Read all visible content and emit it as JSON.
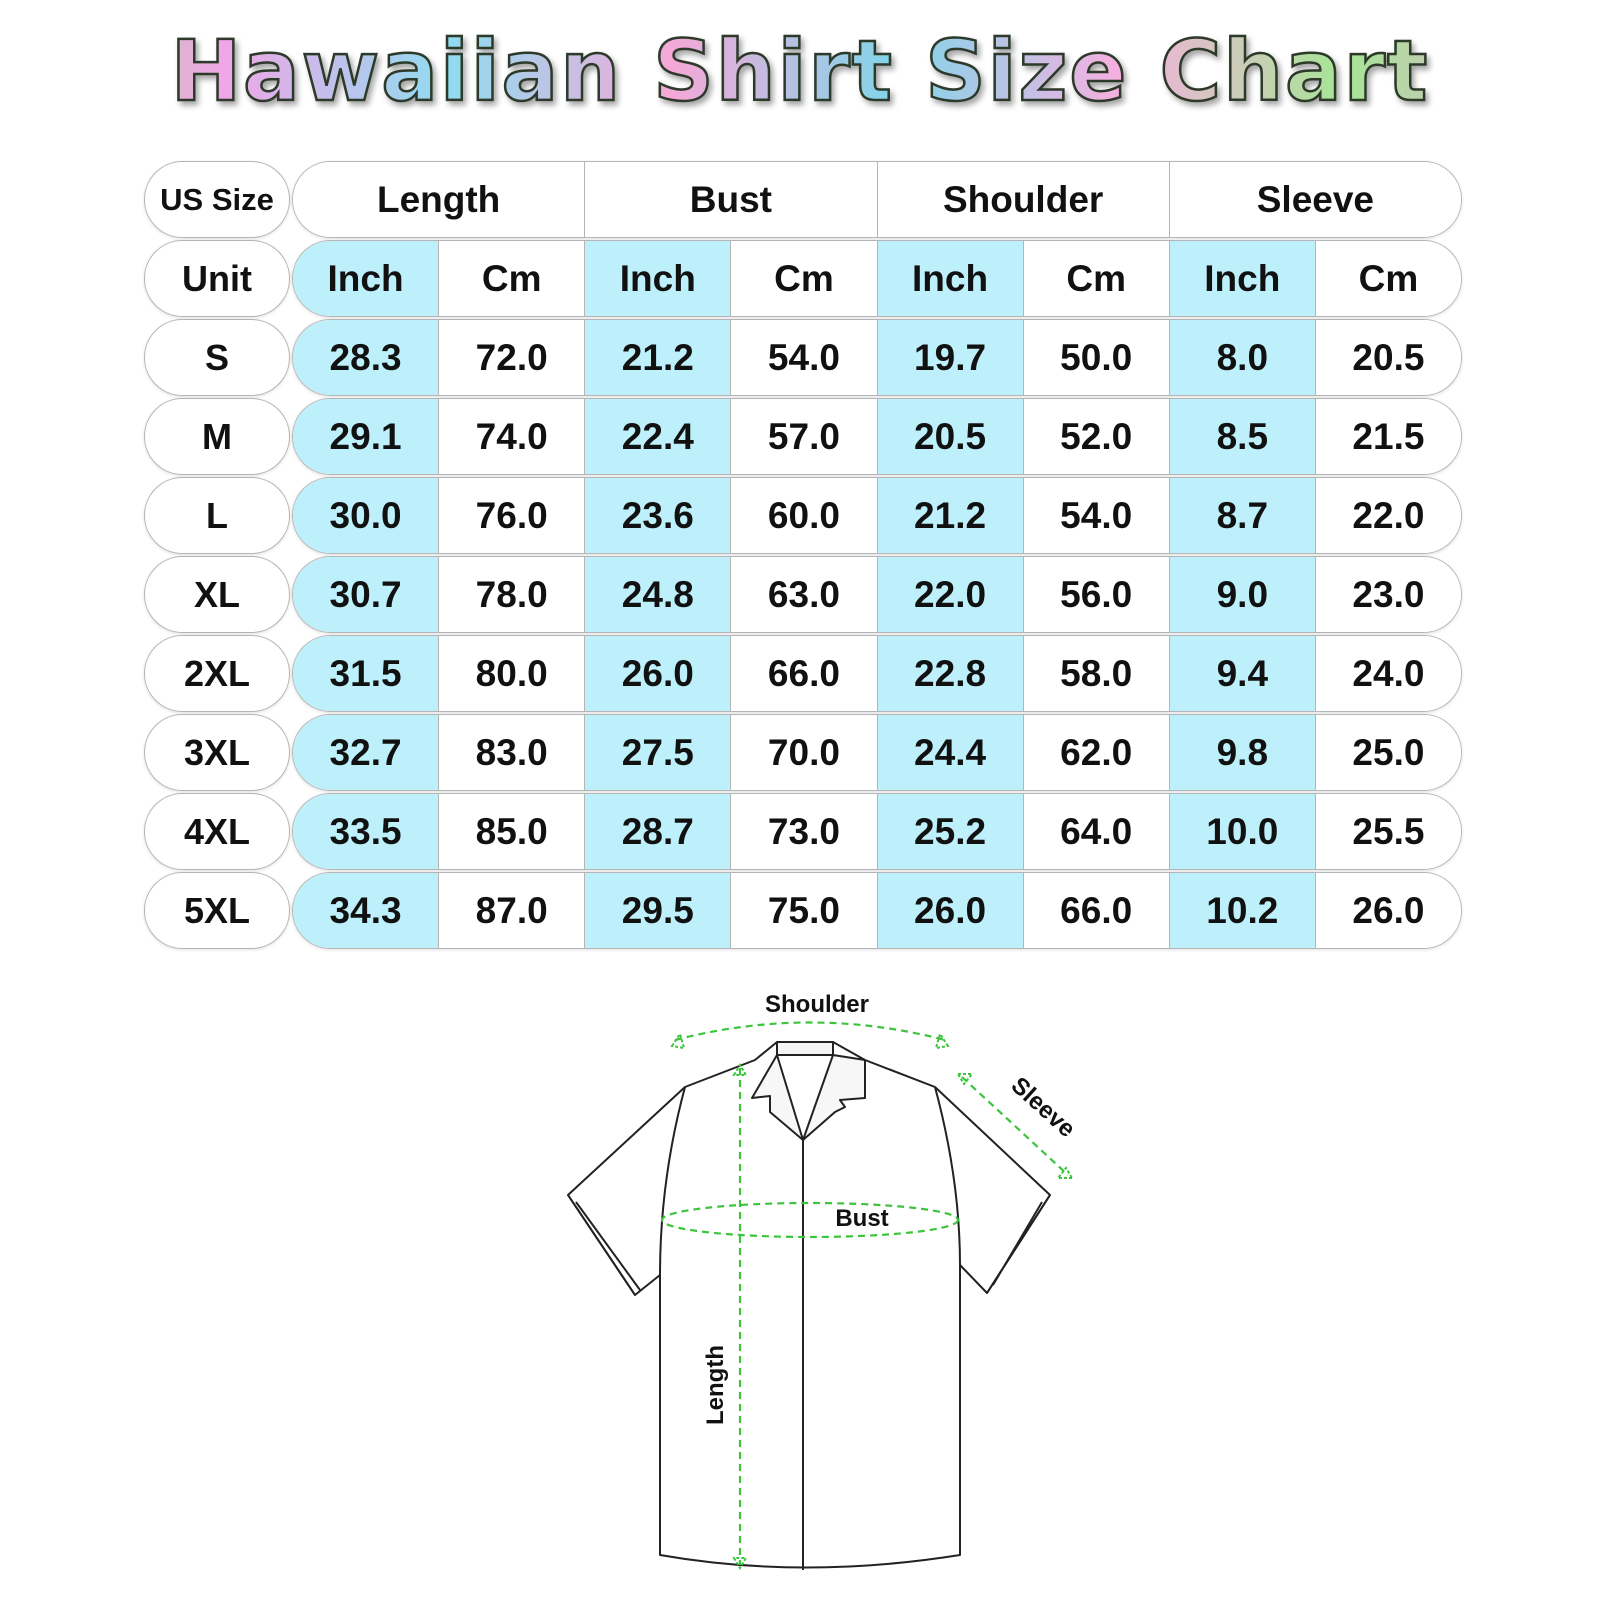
{
  "title": "Hawaiian Shirt Size Chart",
  "colors": {
    "inch_column": "#bdf0fb",
    "measure_line": "#3cc43c",
    "border": "#b5b5b5"
  },
  "table": {
    "size_header": "US Size",
    "unit_header": "Unit",
    "groups": [
      "Length",
      "Bust",
      "Shoulder",
      "Sleeve"
    ],
    "units": [
      "Inch",
      "Cm",
      "Inch",
      "Cm",
      "Inch",
      "Cm",
      "Inch",
      "Cm"
    ],
    "rows": [
      {
        "size": "S",
        "values": [
          "28.3",
          "72.0",
          "21.2",
          "54.0",
          "19.7",
          "50.0",
          "8.0",
          "20.5"
        ]
      },
      {
        "size": "M",
        "values": [
          "29.1",
          "74.0",
          "22.4",
          "57.0",
          "20.5",
          "52.0",
          "8.5",
          "21.5"
        ]
      },
      {
        "size": "L",
        "values": [
          "30.0",
          "76.0",
          "23.6",
          "60.0",
          "21.2",
          "54.0",
          "8.7",
          "22.0"
        ]
      },
      {
        "size": "XL",
        "values": [
          "30.7",
          "78.0",
          "24.8",
          "63.0",
          "22.0",
          "56.0",
          "9.0",
          "23.0"
        ]
      },
      {
        "size": "2XL",
        "values": [
          "31.5",
          "80.0",
          "26.0",
          "66.0",
          "22.8",
          "58.0",
          "9.4",
          "24.0"
        ]
      },
      {
        "size": "3XL",
        "values": [
          "32.7",
          "83.0",
          "27.5",
          "70.0",
          "24.4",
          "62.0",
          "9.8",
          "25.0"
        ]
      },
      {
        "size": "4XL",
        "values": [
          "33.5",
          "85.0",
          "28.7",
          "73.0",
          "25.2",
          "64.0",
          "10.0",
          "25.5"
        ]
      },
      {
        "size": "5XL",
        "values": [
          "34.3",
          "87.0",
          "29.5",
          "75.0",
          "26.0",
          "66.0",
          "10.2",
          "26.0"
        ]
      }
    ]
  },
  "diagram": {
    "shoulder_label": "Shoulder",
    "sleeve_label": "Sleeve",
    "bust_label": "Bust",
    "length_label": "Length"
  }
}
